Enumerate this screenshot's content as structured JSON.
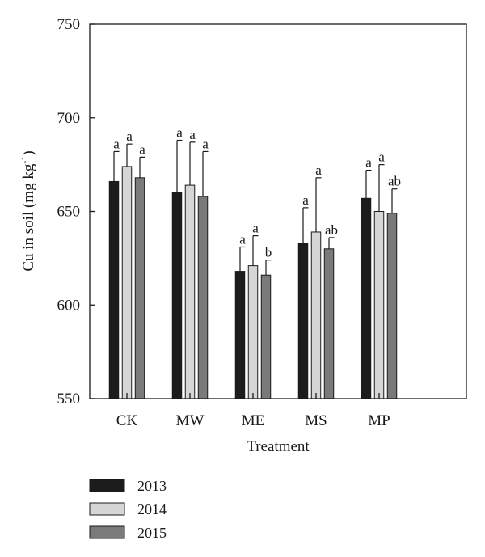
{
  "chart_data": {
    "type": "bar",
    "xlabel": "Treatment",
    "ylabel": "Cu in soil (mg kg",
    "ylabel_sup": "-1",
    "ylabel_suffix": ")",
    "ylim": [
      550,
      750
    ],
    "yticks": [
      550,
      600,
      650,
      700,
      750
    ],
    "categories": [
      "CK",
      "MW",
      "ME",
      "MS",
      "MP"
    ],
    "series": [
      {
        "name": "2013",
        "color": "#1c1c1c",
        "values": [
          666,
          660,
          618,
          633,
          657
        ],
        "errors": [
          16,
          28,
          13,
          19,
          15
        ],
        "letters": [
          "a",
          "a",
          "a",
          "a",
          "a"
        ]
      },
      {
        "name": "2014",
        "color": "#d6d6d6",
        "values": [
          674,
          664,
          621,
          639,
          650
        ],
        "errors": [
          12,
          23,
          16,
          29,
          25
        ],
        "letters": [
          "a",
          "a",
          "a",
          "a",
          "a"
        ]
      },
      {
        "name": "2015",
        "color": "#7a7a7a",
        "values": [
          668,
          658,
          616,
          630,
          649
        ],
        "errors": [
          11,
          24,
          8,
          6,
          13
        ],
        "letters": [
          "a",
          "a",
          "b",
          "ab",
          "ab"
        ]
      }
    ],
    "legend_position": "bottom-left",
    "grid": false
  }
}
